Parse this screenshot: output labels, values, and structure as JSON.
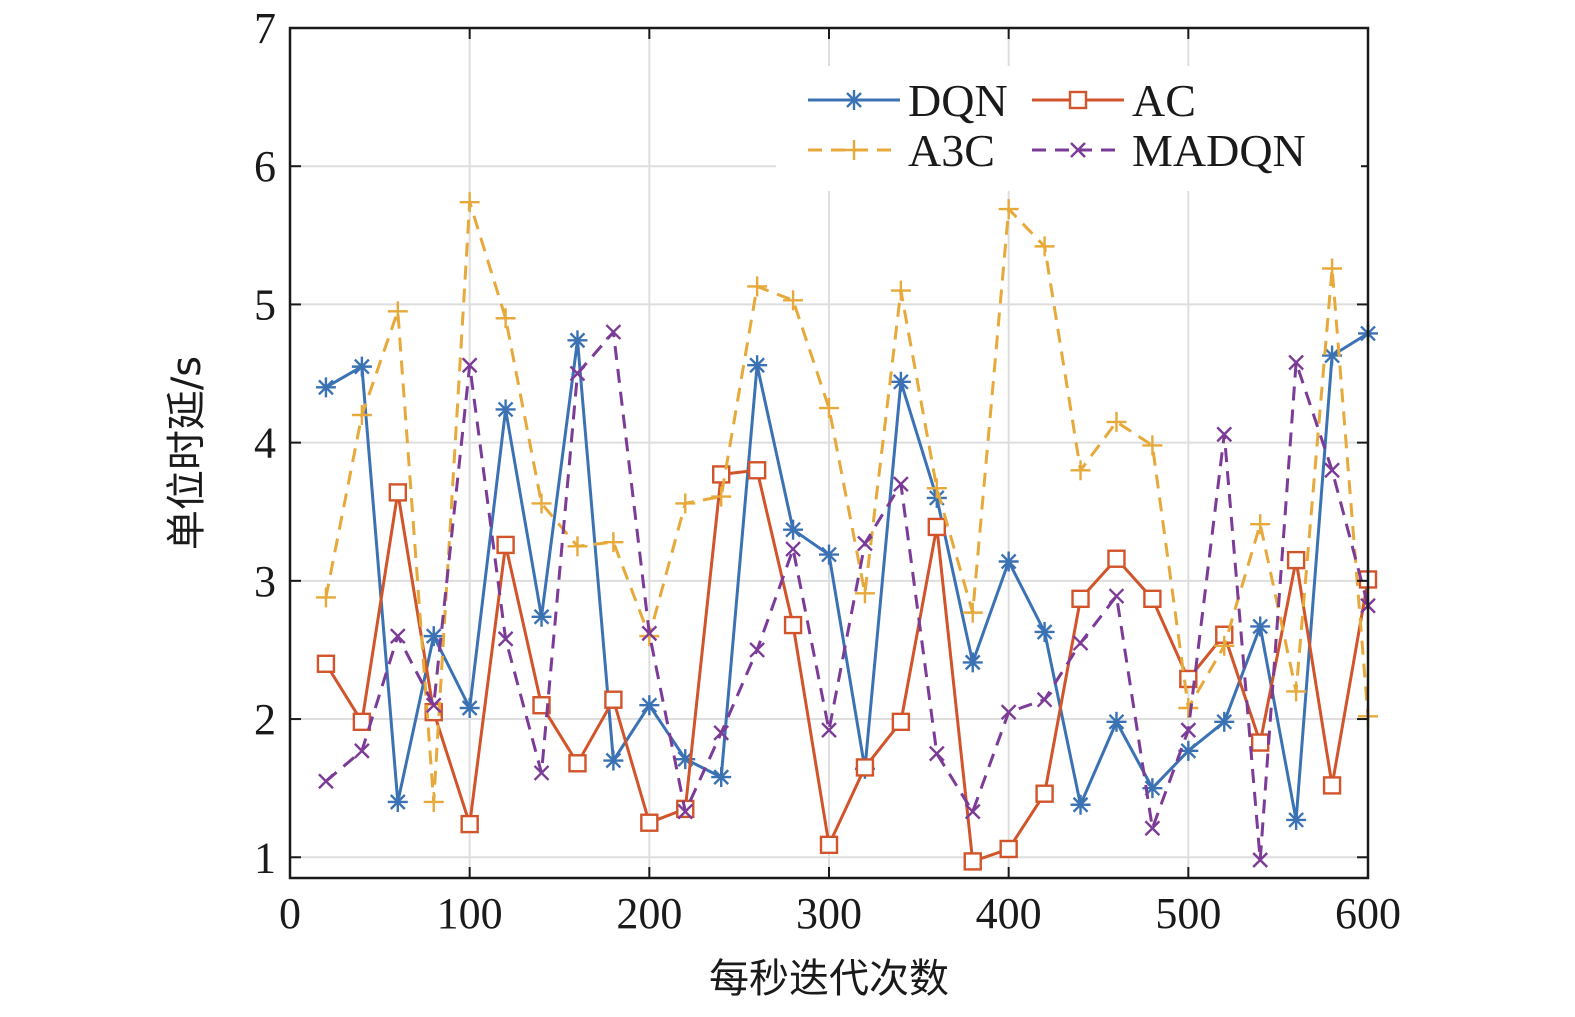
{
  "chart_data": {
    "type": "line",
    "xlabel": "每秒迭代次数",
    "ylabel": "单位时延/s",
    "xlim": [
      0,
      600
    ],
    "ylim": [
      0.85,
      7
    ],
    "xticks": [
      0,
      100,
      200,
      300,
      400,
      500,
      600
    ],
    "yticks": [
      1,
      2,
      3,
      4,
      5,
      6,
      7
    ],
    "grid": true,
    "legend_position": "top-right",
    "x": [
      20,
      40,
      60,
      80,
      100,
      120,
      140,
      160,
      180,
      200,
      220,
      240,
      260,
      280,
      300,
      320,
      340,
      360,
      380,
      400,
      420,
      440,
      460,
      480,
      500,
      520,
      540,
      560,
      580,
      600
    ],
    "series": [
      {
        "name": "DQN",
        "color": "#3b72b4",
        "line": "solid",
        "marker": "asterisk",
        "values": [
          4.4,
          4.55,
          1.4,
          2.6,
          2.08,
          4.24,
          2.74,
          4.74,
          1.7,
          2.1,
          1.71,
          1.58,
          4.56,
          3.37,
          3.19,
          1.64,
          4.44,
          3.6,
          2.41,
          3.14,
          2.63,
          1.38,
          1.98,
          1.5,
          1.77,
          1.98,
          2.67,
          1.27,
          4.63,
          4.79
        ]
      },
      {
        "name": "AC",
        "color": "#d1542a",
        "line": "solid",
        "marker": "square",
        "values": [
          2.4,
          1.98,
          3.64,
          2.05,
          1.24,
          3.26,
          2.1,
          1.68,
          2.14,
          1.25,
          1.35,
          3.77,
          3.8,
          2.68,
          1.09,
          1.65,
          1.98,
          3.39,
          0.97,
          1.06,
          1.46,
          2.87,
          3.16,
          2.87,
          2.29,
          2.61,
          1.83,
          3.15,
          1.52,
          3.01
        ]
      },
      {
        "name": "A3C",
        "color": "#e6a93a",
        "line": "dashed",
        "marker": "plus",
        "values": [
          2.88,
          4.2,
          4.95,
          1.4,
          5.74,
          4.9,
          3.56,
          3.25,
          3.28,
          2.6,
          3.56,
          3.61,
          5.13,
          5.03,
          4.25,
          2.91,
          5.1,
          3.67,
          2.77,
          5.69,
          5.42,
          3.8,
          4.15,
          3.98,
          2.08,
          2.53,
          3.41,
          2.2,
          5.26,
          2.02
        ]
      },
      {
        "name": "MADQN",
        "color": "#7b3b97",
        "line": "dashed",
        "marker": "x",
        "values": [
          1.55,
          1.77,
          2.6,
          2.1,
          4.56,
          2.58,
          1.61,
          4.5,
          4.8,
          2.62,
          1.33,
          1.9,
          2.5,
          3.23,
          1.92,
          3.27,
          3.7,
          1.75,
          1.33,
          2.05,
          2.14,
          2.55,
          2.89,
          1.21,
          1.92,
          4.06,
          0.98,
          4.58,
          3.8,
          2.82
        ]
      }
    ]
  }
}
